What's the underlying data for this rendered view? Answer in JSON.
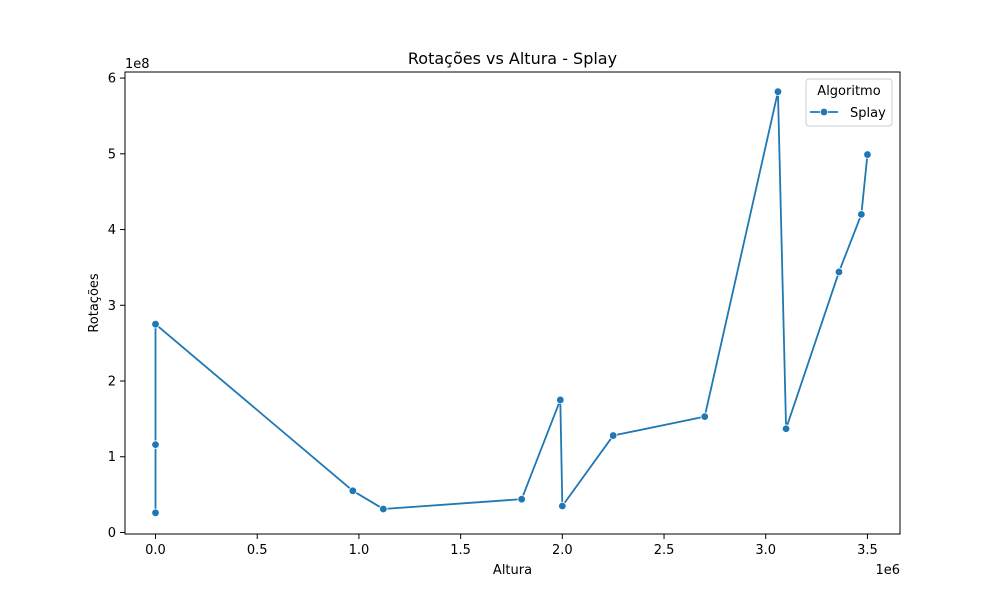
{
  "chart_data": {
    "type": "line",
    "title": "Rotações vs Altura - Splay",
    "xlabel": "Altura",
    "ylabel": "Rotações",
    "x_offset_label": "1e6",
    "y_offset_label": "1e8",
    "xlim": [
      -150000,
      3660000
    ],
    "ylim": [
      -2000000,
      608000000
    ],
    "x_ticks": [
      0,
      500000,
      1000000,
      1500000,
      2000000,
      2500000,
      3000000,
      3500000
    ],
    "x_tick_labels": [
      "0.0",
      "0.5",
      "1.0",
      "1.5",
      "2.0",
      "2.5",
      "3.0",
      "3.5"
    ],
    "y_ticks": [
      0,
      100000000,
      200000000,
      300000000,
      400000000,
      500000000,
      600000000
    ],
    "y_tick_labels": [
      "0",
      "1",
      "2",
      "3",
      "4",
      "5",
      "6"
    ],
    "grid": false,
    "legend": {
      "title": "Algoritmo",
      "placement": "top-right"
    },
    "series": [
      {
        "name": "Splay",
        "color": "#1f77b4",
        "x": [
          0,
          0,
          0,
          970000,
          1120000,
          1800000,
          1990000,
          2000000,
          2250000,
          2700000,
          3060000,
          3100000,
          3360000,
          3470000,
          3500000
        ],
        "y": [
          26000000,
          116000000,
          275000000,
          55000000,
          31000000,
          44000000,
          175000000,
          35000000,
          128000000,
          153000000,
          582000000,
          137000000,
          344000000,
          420000000,
          499000000
        ]
      }
    ]
  }
}
